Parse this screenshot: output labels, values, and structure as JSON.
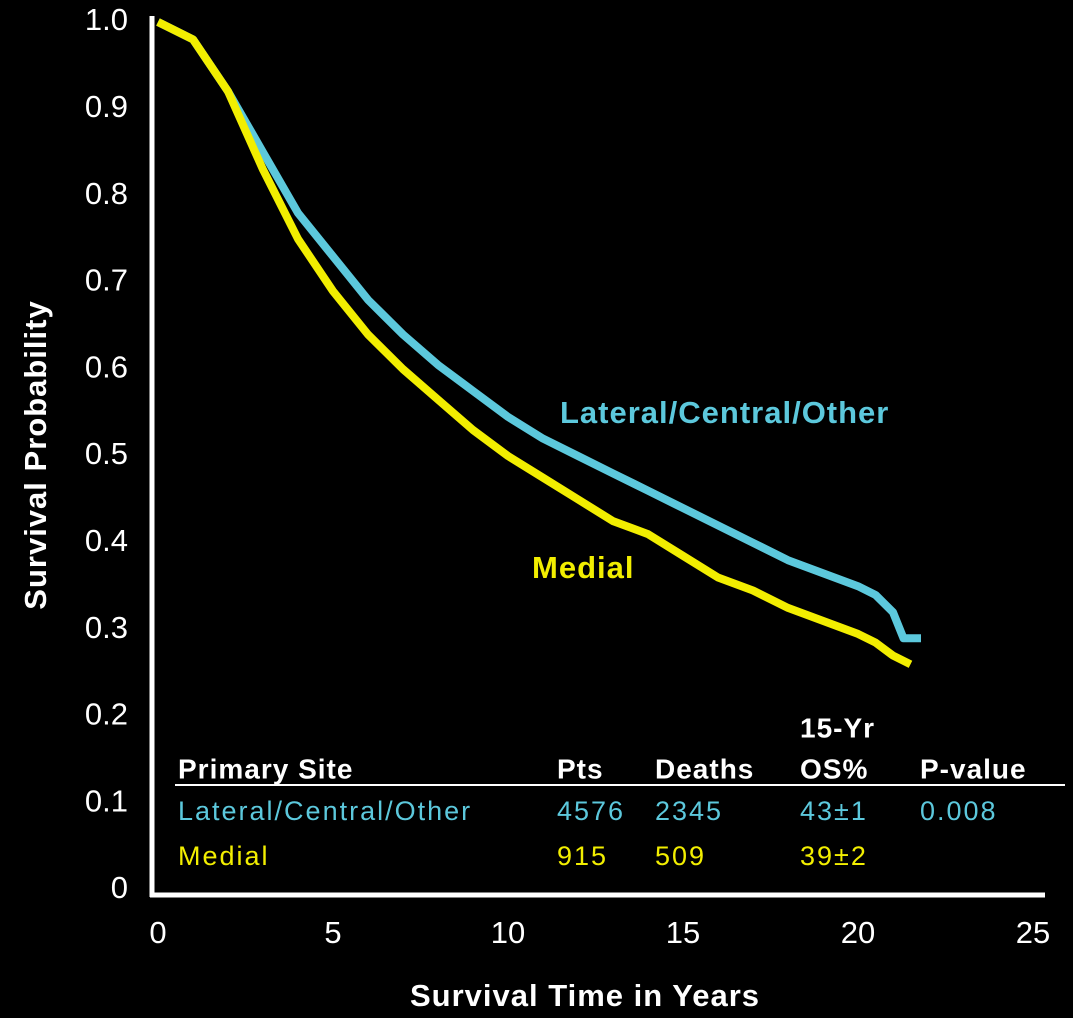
{
  "chart_data": {
    "type": "line",
    "x_label": "Survival Time in Years",
    "y_label": "Survival Probability",
    "xlim": [
      0,
      25
    ],
    "xticks": [
      0,
      5,
      10,
      15,
      20,
      25
    ],
    "ylim": [
      0,
      1
    ],
    "yticks": [
      0,
      0.1,
      0.2,
      0.3,
      0.4,
      0.5,
      0.6,
      0.7,
      0.8,
      0.9,
      {
        "value": 1,
        "label": "1.0"
      }
    ],
    "grid": false,
    "series": [
      {
        "name": "Lateral/Central/Other",
        "color": "#5cc8dc",
        "x": [
          0,
          1,
          2,
          3,
          4,
          5,
          6,
          7,
          8,
          9,
          10,
          11,
          12,
          13,
          14,
          15,
          16,
          17,
          18,
          19,
          20,
          20.5,
          21,
          21.3,
          21.8
        ],
        "values": [
          1.0,
          0.98,
          0.92,
          0.85,
          0.78,
          0.73,
          0.68,
          0.64,
          0.605,
          0.575,
          0.545,
          0.52,
          0.5,
          0.48,
          0.46,
          0.44,
          0.42,
          0.4,
          0.38,
          0.365,
          0.35,
          0.34,
          0.32,
          0.29,
          0.29
        ]
      },
      {
        "name": "Medial",
        "color": "#f2ee00",
        "x": [
          0,
          1,
          2,
          3,
          4,
          5,
          6,
          7,
          8,
          9,
          10,
          11,
          12,
          13,
          14,
          15,
          16,
          17,
          18,
          19,
          20,
          20.5,
          21,
          21.5
        ],
        "values": [
          1.0,
          0.98,
          0.92,
          0.83,
          0.75,
          0.69,
          0.64,
          0.6,
          0.565,
          0.53,
          0.5,
          0.475,
          0.45,
          0.425,
          0.41,
          0.385,
          0.36,
          0.345,
          0.325,
          0.31,
          0.295,
          0.285,
          0.27,
          0.26
        ]
      }
    ],
    "table": {
      "header_note": "15-Yr",
      "header": [
        "Primary Site",
        "Pts",
        "Deaths",
        "OS%",
        "P-value"
      ],
      "rows": [
        [
          "Lateral/Central/Other",
          "4576",
          "2345",
          "43±1",
          "0.008"
        ],
        [
          "Medial",
          "915",
          "509",
          "39±2"
        ]
      ]
    }
  }
}
